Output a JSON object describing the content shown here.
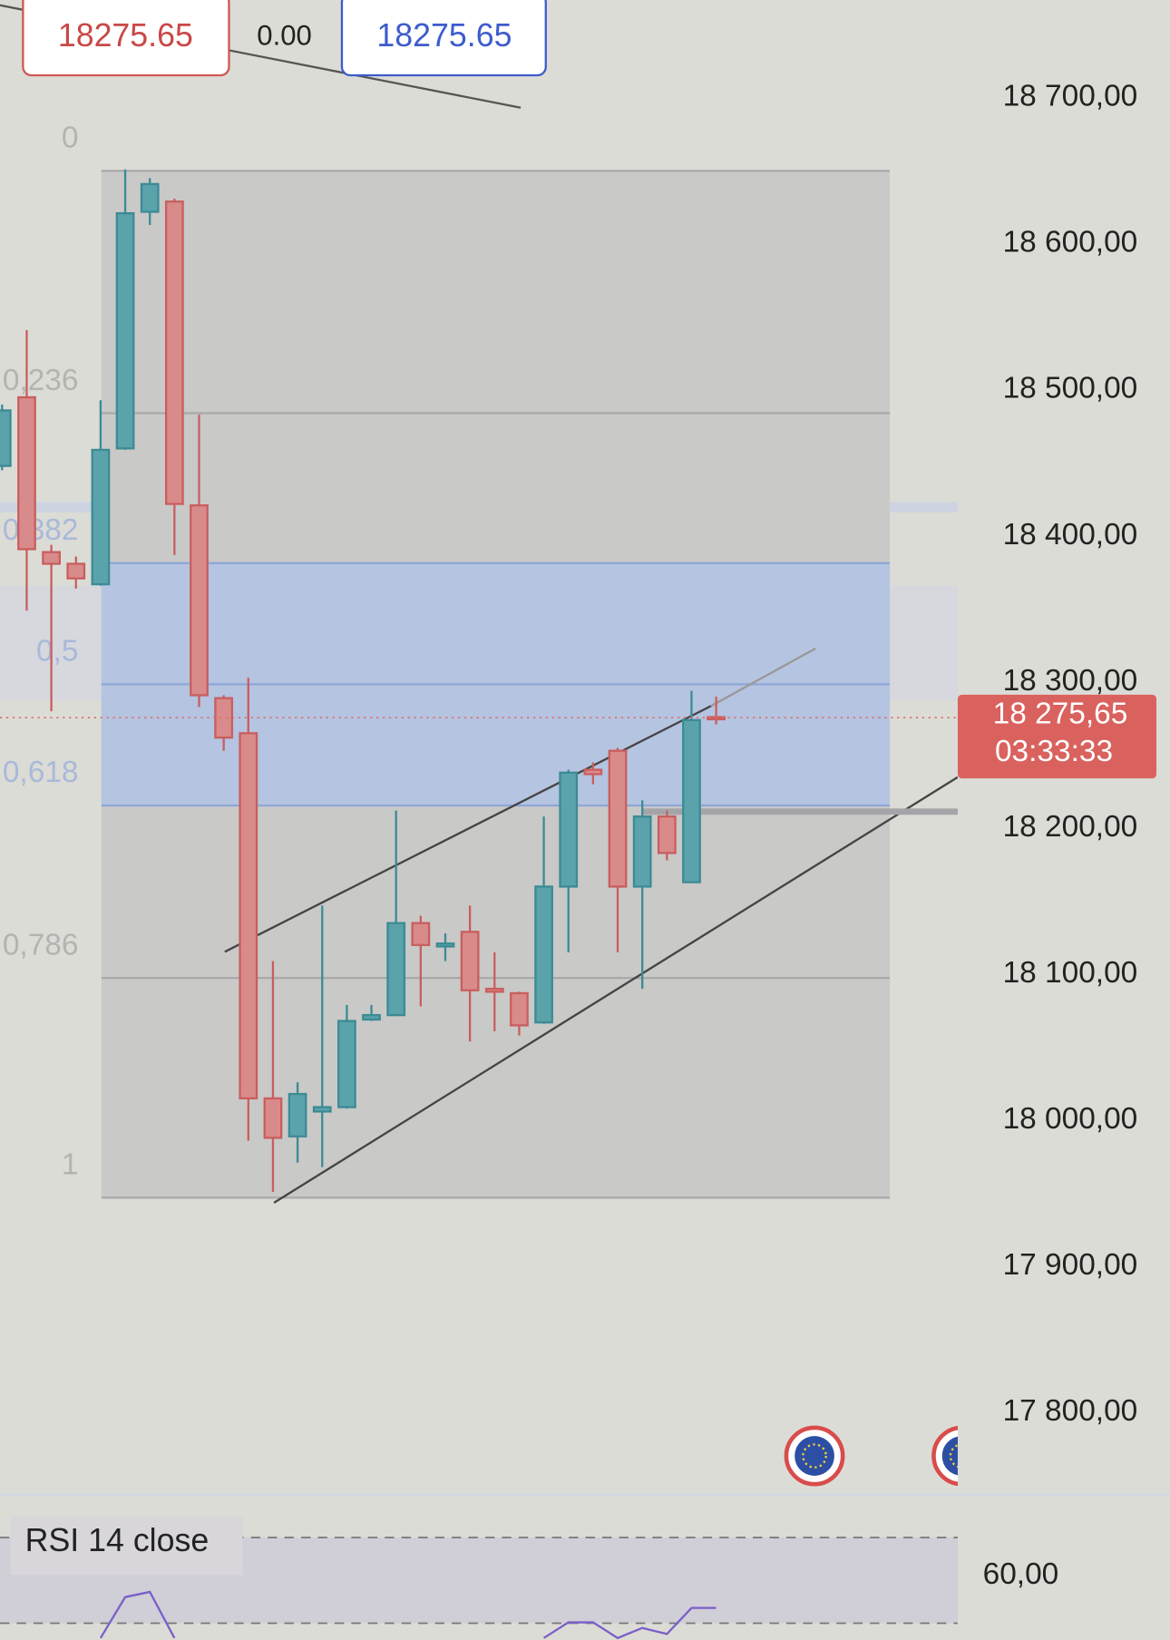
{
  "chart_data": {
    "type": "candlestick",
    "candles": {
      "open": [
        18448,
        18495,
        18389,
        18381,
        18367,
        18460,
        18622,
        18629,
        18421,
        18289,
        18265,
        18015,
        17989,
        18006,
        18009,
        18069,
        18072,
        18135,
        18119,
        18129,
        18090,
        18087,
        18067,
        18160,
        18240,
        18253,
        18160,
        18208,
        18163,
        18276
      ],
      "high": [
        18490,
        18541,
        18394,
        18386,
        18493,
        18651,
        18645,
        18631,
        18483,
        18291,
        18303,
        18109,
        18026,
        18147,
        18079,
        18079,
        18212,
        18140,
        18128,
        18147,
        18115,
        18088,
        18208,
        18240,
        18245,
        18255,
        18219,
        18212,
        18294,
        18290
      ],
      "low": [
        18445,
        18349,
        18280,
        18364,
        18366,
        18459,
        18613,
        18387,
        18283,
        18253,
        17986,
        17951,
        17971,
        17968,
        18008,
        18068,
        18072,
        18078,
        18109,
        18054,
        18061,
        18058,
        18066,
        18115,
        18230,
        18115,
        18090,
        18178,
        18163,
        18271
      ],
      "close": [
        18486,
        18391,
        18381,
        18371,
        18459,
        18621,
        18641,
        18422,
        18291,
        18262,
        18015,
        17988,
        18018,
        18009,
        18068,
        18072,
        18135,
        18120,
        18121,
        18089,
        18088,
        18065,
        18160,
        18238,
        18237,
        18160,
        18208,
        18183,
        18274,
        18275.65
      ]
    },
    "up_color": "#5ba3ab",
    "down_color": "#d98b8b",
    "ylim": [
      17743,
      18767
    ],
    "yticks": [
      {
        "value": 17800,
        "label": "17 800,00"
      },
      {
        "value": 17900,
        "label": "17 900,00"
      },
      {
        "value": 18000,
        "label": "18 000,00"
      },
      {
        "value": 18100,
        "label": "18 100,00"
      },
      {
        "value": 18200,
        "label": "18 200,00"
      },
      {
        "value": 18300,
        "label": "18 300,00"
      },
      {
        "value": 18400,
        "label": "18 400,00"
      },
      {
        "value": 18500,
        "label": "18 500,00"
      },
      {
        "value": 18600,
        "label": "18 600,00"
      },
      {
        "value": 18700,
        "label": "18 700,00"
      }
    ],
    "last_price": {
      "value": 18275.65,
      "label": "18 275,65"
    },
    "countdown": "03:33:33",
    "toolbar": {
      "sell": 18275.65,
      "spread": {
        "value": 0,
        "label": "0.00"
      },
      "buy": 18275.65
    },
    "fib": {
      "high": 18650,
      "low": 17947,
      "levels": [
        0,
        {
          "value": 0.236,
          "label": "0,236"
        },
        {
          "value": 0.382,
          "label": "0,382"
        },
        {
          "value": 0.5,
          "label": "0,5"
        },
        {
          "value": 0.618,
          "label": "0,618"
        },
        {
          "value": 0.786,
          "label": "0,786"
        },
        1
      ]
    },
    "rsi": {
      "title": "RSI 14 close",
      "color": "#7b5fc9",
      "values": [
        null,
        null,
        null,
        null,
        44.5,
        54.7,
        56,
        44.5,
        null,
        null,
        null,
        null,
        null,
        null,
        null,
        null,
        null,
        null,
        null,
        null,
        null,
        null,
        44.5,
        48.4,
        48.4,
        44.5,
        47,
        45.5,
        52,
        52
      ],
      "ylim": [
        44,
        80
      ],
      "yticks": [
        {
          "value": 60,
          "label": "60,00"
        }
      ]
    }
  }
}
